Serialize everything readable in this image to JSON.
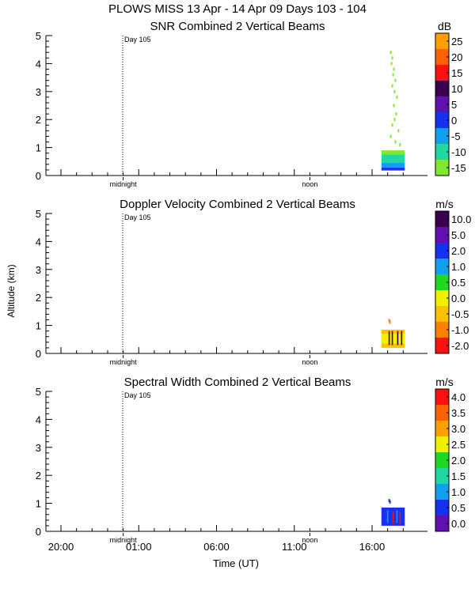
{
  "figure": {
    "title": "PLOWS MISS  13 Apr - 14 Apr 09 Days 103 - 104",
    "ylabel": "Altitude (km)",
    "xlabel": "Time (UT)",
    "x_tick_labels": [
      "20:00",
      "01:00",
      "06:00",
      "11:00",
      "16:00"
    ],
    "day_marker_label": "Day 105",
    "midnight_label": "midnight",
    "noon_label": "noon"
  },
  "chart_data": [
    {
      "type": "heatmap",
      "title": "SNR Combined 2 Vertical Beams",
      "ylim": [
        0,
        5
      ],
      "y_ticks": [
        "0",
        "1",
        "2",
        "3",
        "4",
        "5"
      ],
      "colorbar_unit": "dB",
      "colorbar_labels": [
        "25",
        "20",
        "15",
        "10",
        "5",
        "0",
        "-5",
        "-10",
        "-15"
      ],
      "colorbar_colors": [
        "#ffa000",
        "#ff6000",
        "#ff1010",
        "#3a0050",
        "#6010b0",
        "#1830f0",
        "#10a0f0",
        "#20d8a0",
        "#80e830"
      ],
      "series": [
        {
          "name": "",
          "color": "#80e830",
          "kind": "sparse",
          "points": [
            [
              17.2,
              4.4
            ],
            [
              17.3,
              4.2
            ],
            [
              17.25,
              4.0
            ],
            [
              17.4,
              3.8
            ],
            [
              17.35,
              3.6
            ],
            [
              17.5,
              3.4
            ],
            [
              17.3,
              3.2
            ],
            [
              17.45,
              3.0
            ],
            [
              17.6,
              2.8
            ],
            [
              17.4,
              2.5
            ],
            [
              17.55,
              2.2
            ],
            [
              17.45,
              2.0
            ],
            [
              17.3,
              1.8
            ],
            [
              17.7,
              1.6
            ],
            [
              17.2,
              1.4
            ],
            [
              17.5,
              1.2
            ],
            [
              17.8,
              1.1
            ]
          ]
        },
        {
          "name": "",
          "color": "#80e830",
          "kind": "band",
          "x_range": [
            16.6,
            18.1
          ],
          "y_range": [
            0.75,
            0.9
          ]
        },
        {
          "name": "",
          "color": "#20d8a0",
          "kind": "band",
          "x_range": [
            16.6,
            18.1
          ],
          "y_range": [
            0.45,
            0.75
          ]
        },
        {
          "name": "",
          "color": "#10a0f0",
          "kind": "band",
          "x_range": [
            16.6,
            18.1
          ],
          "y_range": [
            0.28,
            0.45
          ]
        },
        {
          "name": "",
          "color": "#1830f0",
          "kind": "band",
          "x_range": [
            16.6,
            18.1
          ],
          "y_range": [
            0.18,
            0.28
          ]
        }
      ]
    },
    {
      "type": "heatmap",
      "title": "Doppler Velocity Combined 2 Vertical Beams",
      "ylim": [
        0,
        5
      ],
      "y_ticks": [
        "0",
        "1",
        "2",
        "3",
        "4",
        "5"
      ],
      "colorbar_unit": "m/s",
      "colorbar_labels": [
        "10.0",
        "5.0",
        "2.0",
        "1.0",
        "0.5",
        "0.0",
        "-0.5",
        "-1.0",
        "-2.0"
      ],
      "colorbar_colors": [
        "#3a0050",
        "#6010b0",
        "#1830f0",
        "#10a0f0",
        "#20d820",
        "#f0f000",
        "#ffc000",
        "#ff8000",
        "#ff1010"
      ],
      "series": [
        {
          "name": "",
          "color": "#ff8000",
          "kind": "sparse",
          "points": [
            [
              17.1,
              1.18
            ],
            [
              17.15,
              1.12
            ]
          ]
        },
        {
          "name": "",
          "color": "#ffc000",
          "kind": "band",
          "x_range": [
            16.6,
            18.1
          ],
          "y_range": [
            0.2,
            0.85
          ]
        },
        {
          "name": "",
          "color": "#f0f000",
          "kind": "band",
          "x_range": [
            16.6,
            18.1
          ],
          "y_range": [
            0.35,
            0.7
          ]
        },
        {
          "name": "",
          "color": "#3a0050",
          "kind": "stripes",
          "x_values": [
            17.1,
            17.3,
            17.65,
            17.9
          ],
          "y_range": [
            0.3,
            0.8
          ]
        }
      ]
    },
    {
      "type": "heatmap",
      "title": "Spectral Width Combined 2 Vertical Beams",
      "ylim": [
        0,
        5
      ],
      "y_ticks": [
        "0",
        "1",
        "2",
        "3",
        "4",
        "5"
      ],
      "colorbar_unit": "m/s",
      "colorbar_labels": [
        "4.0",
        "3.5",
        "3.0",
        "2.5",
        "2.0",
        "1.5",
        "1.0",
        "0.5",
        "0.0"
      ],
      "colorbar_colors": [
        "#ff1010",
        "#ff6000",
        "#ffa000",
        "#f0f000",
        "#20d820",
        "#20d8a0",
        "#10a0f0",
        "#1830f0",
        "#6010b0"
      ],
      "series": [
        {
          "name": "",
          "color": "#1830f0",
          "kind": "sparse",
          "points": [
            [
              17.1,
              1.1
            ],
            [
              17.15,
              1.05
            ]
          ]
        },
        {
          "name": "",
          "color": "#1830f0",
          "kind": "band",
          "x_range": [
            16.6,
            18.1
          ],
          "y_range": [
            0.2,
            0.85
          ]
        },
        {
          "name": "",
          "color": "#10a0f0",
          "kind": "stripes",
          "x_values": [
            17.0,
            17.6
          ],
          "y_range": [
            0.3,
            0.75
          ]
        },
        {
          "name": "",
          "color": "#ff1010",
          "kind": "stripes",
          "x_values": [
            17.35,
            17.8
          ],
          "y_range": [
            0.25,
            0.7
          ]
        }
      ]
    }
  ]
}
